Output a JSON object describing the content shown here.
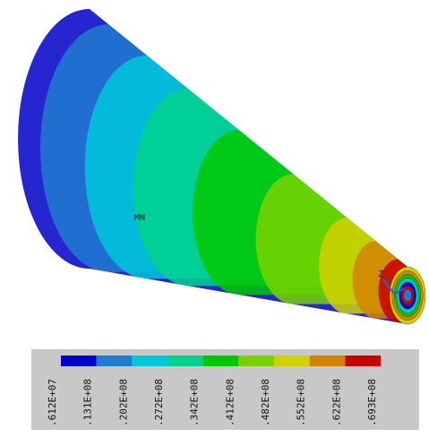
{
  "plot": {
    "min_label": "MN",
    "axis_label": "Z"
  },
  "legend": {
    "colors": [
      "#0000c8",
      "#1e7bd0",
      "#00c8dc",
      "#00d28c",
      "#00c800",
      "#78d200",
      "#d2d200",
      "#d28200",
      "#c80000"
    ],
    "labels": [
      ".612E+07",
      ".131E+08",
      ".202E+08",
      ".272E+08",
      ".342E+08",
      ".412E+08",
      ".482E+08",
      ".552E+08",
      ".622E+08",
      ".693E+08"
    ]
  }
}
